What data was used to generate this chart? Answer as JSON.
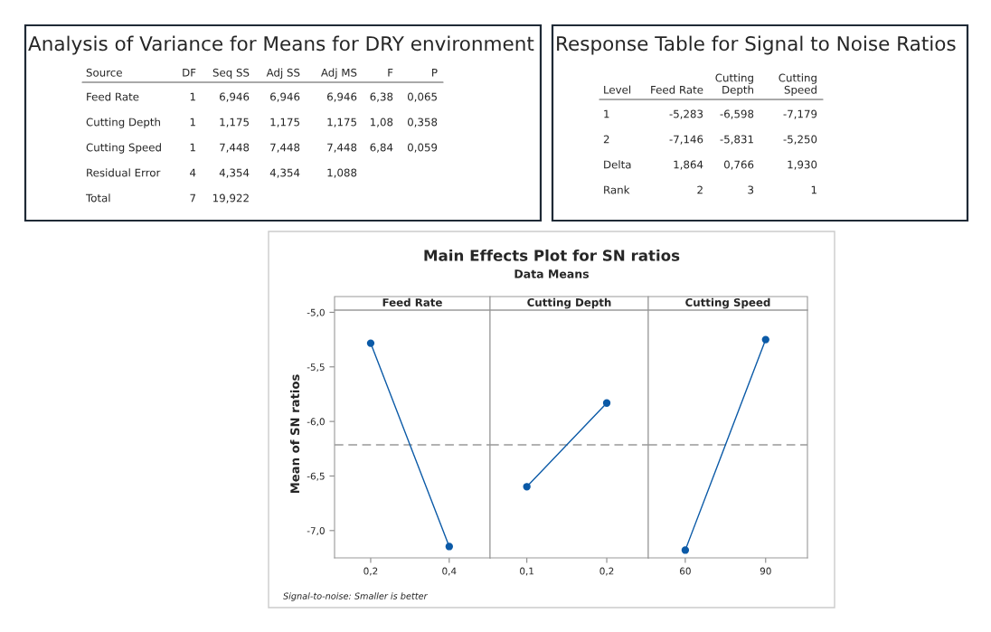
{
  "chart_data": [
    {
      "type": "other",
      "title": "Analysis of Variance for Means for DRY environment",
      "categories": [
        "Source",
        "DF",
        "Seq SS",
        "Adj SS",
        "Adj MS",
        "F",
        "P"
      ],
      "y_categories": [
        "Feed Rate",
        "Cutting Depth",
        "Cutting Speed",
        "Residual Error",
        "Total"
      ],
      "cell_labels": [
        [
          "1",
          "6,946",
          "6,946",
          "6,946",
          "6,38",
          "0,065"
        ],
        [
          "1",
          "1,175",
          "1,175",
          "1,175",
          "1,08",
          "0,358"
        ],
        [
          "1",
          "7,448",
          "7,448",
          "7,448",
          "6,84",
          "0,059"
        ],
        [
          "4",
          "4,354",
          "4,354",
          "1,088",
          null,
          null
        ],
        [
          "7",
          "19,922",
          null,
          null,
          null,
          null
        ]
      ]
    },
    {
      "type": "other",
      "title": "Response Table for Signal to Noise Ratios",
      "categories": [
        "Level",
        "Feed Rate",
        "Cutting\nDepth",
        "Cutting\nSpeed"
      ],
      "y_categories": [
        "1",
        "2",
        "Delta",
        "Rank"
      ],
      "cell_labels": [
        [
          "-5,283",
          "-6,598",
          "-7,179"
        ],
        [
          "-7,146",
          "-5,831",
          "-5,250"
        ],
        [
          "1,864",
          "0,766",
          "1,930"
        ],
        [
          "2",
          "3",
          "1"
        ]
      ]
    },
    {
      "type": "other",
      "title": "Main Effects Plot for SN ratios",
      "subtitle": "Data Means",
      "annotations": [
        "Signal-to-noise: Smaller is better"
      ]
    },
    {
      "type": "line",
      "title": "Feed Rate",
      "ylabel": "Mean of SN ratios",
      "categories": [
        "0,2",
        "0,4"
      ],
      "values": [
        -5.283,
        -7.146
      ],
      "color": "#0b5aa7",
      "marker": "circle",
      "ylim": [
        -7.25,
        -4.98
      ],
      "yticks": [
        {
          "value": -5.0,
          "label": "-5,0"
        },
        {
          "value": -5.5,
          "label": "-5,5"
        },
        {
          "value": -6.0,
          "label": "-6,0"
        },
        {
          "value": -6.5,
          "label": "-6,5"
        },
        {
          "value": -7.0,
          "label": "-7,0"
        }
      ],
      "ref_lines": [
        {
          "axis": "y",
          "value": -6.214,
          "color": "#999999",
          "line_style": "dashed"
        }
      ]
    },
    {
      "type": "line",
      "title": "Cutting Depth",
      "categories": [
        "0,1",
        "0,2"
      ],
      "values": [
        -6.598,
        -5.831
      ],
      "color": "#0b5aa7",
      "marker": "circle",
      "ylim": [
        -7.25,
        -4.98
      ],
      "tick_labels": "x",
      "ref_lines": [
        {
          "axis": "y",
          "value": -6.214,
          "color": "#999999",
          "line_style": "dashed"
        }
      ]
    },
    {
      "type": "line",
      "title": "Cutting Speed",
      "categories": [
        "60",
        "90"
      ],
      "values": [
        -7.179,
        -5.25
      ],
      "color": "#0b5aa7",
      "marker": "circle",
      "ylim": [
        -7.25,
        -4.98
      ],
      "tick_labels": "x",
      "ref_lines": [
        {
          "axis": "y",
          "value": -6.214,
          "color": "#999999",
          "line_style": "dashed"
        }
      ]
    }
  ]
}
